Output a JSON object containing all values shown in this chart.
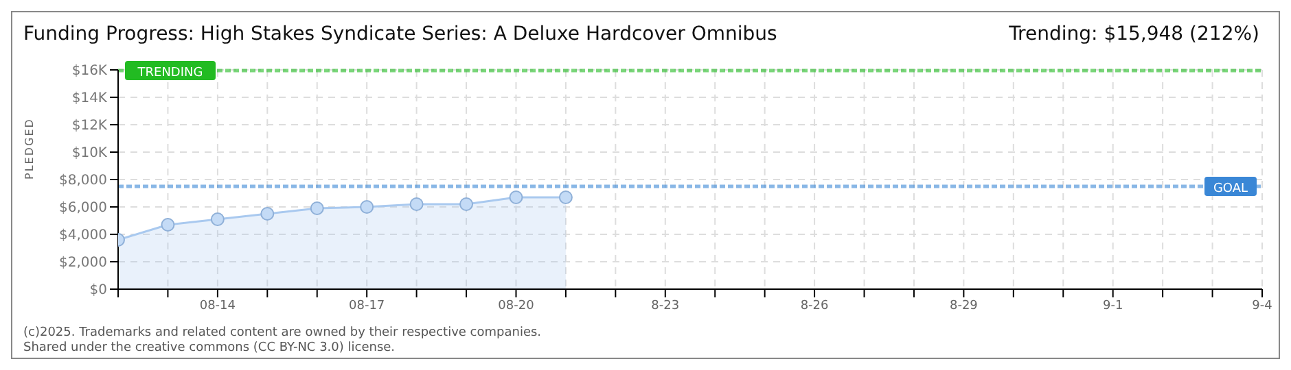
{
  "chart_data": {
    "type": "area",
    "title": "Funding Progress: High Stakes Syndicate Series: A Deluxe Hardcover Omnibus",
    "ylabel": "PLEDGED",
    "annotations": [
      "Trending:  $15,948 (212%)",
      "(c)2025. Trademarks and related content are owned by their respective companies.",
      "Shared under the creative commons (CC BY-NC 3.0) license."
    ],
    "x": [
      "--08-12",
      "--08-13",
      "--08-14",
      "--08-15",
      "--08-16",
      "--08-17",
      "--08-18",
      "--08-19",
      "--08-20",
      "--08-21"
    ],
    "series": [
      {
        "color": "#a9c9ef",
        "values": [
          3600,
          4700,
          5100,
          5500,
          5900,
          6000,
          6200,
          6200,
          6700,
          6700
        ]
      }
    ],
    "xlim": [
      "--08-12",
      "--09-04"
    ],
    "xticks": [
      {
        "value": "--08-12",
        "label": null
      },
      {
        "value": "--08-13",
        "label": null
      },
      {
        "value": "--08-14",
        "label": "08-14"
      },
      {
        "value": "--08-15",
        "label": null
      },
      {
        "value": "--08-16",
        "label": null
      },
      {
        "value": "--08-17",
        "label": "08-17"
      },
      {
        "value": "--08-18",
        "label": null
      },
      {
        "value": "--08-19",
        "label": null
      },
      {
        "value": "--08-20",
        "label": "08-20"
      },
      {
        "value": "--08-21",
        "label": null
      },
      {
        "value": "--08-22",
        "label": null
      },
      {
        "value": "--08-23",
        "label": "8-23"
      },
      {
        "value": "--08-24",
        "label": null
      },
      {
        "value": "--08-25",
        "label": null
      },
      {
        "value": "--08-26",
        "label": "8-26"
      },
      {
        "value": "--08-27",
        "label": null
      },
      {
        "value": "--08-28",
        "label": null
      },
      {
        "value": "--08-29",
        "label": "8-29"
      },
      {
        "value": "--08-30",
        "label": null
      },
      {
        "value": "--08-31",
        "label": null
      },
      {
        "value": "--09-01",
        "label": "9-1"
      },
      {
        "value": "--09-02",
        "label": null
      },
      {
        "value": "--09-03",
        "label": null
      },
      {
        "value": "--09-04",
        "label": "9-4"
      }
    ],
    "ylim": [
      0,
      16000
    ],
    "yticks": [
      {
        "value": 0,
        "label": "$0"
      },
      {
        "value": 2000,
        "label": "$2,000"
      },
      {
        "value": 4000,
        "label": "$4,000"
      },
      {
        "value": 6000,
        "label": "$6,000"
      },
      {
        "value": 8000,
        "label": "$8,000"
      },
      {
        "value": 10000,
        "label": "$10K"
      },
      {
        "value": 12000,
        "label": "$12K"
      },
      {
        "value": 14000,
        "label": "$14K"
      },
      {
        "value": 16000,
        "label": "$16K"
      }
    ],
    "ref_lines": [
      {
        "axis": "y",
        "value": 15948,
        "label": "TRENDING",
        "color": "#22bb22",
        "line_style": "dashed"
      },
      {
        "axis": "y",
        "value": 7500,
        "label": "GOAL",
        "color": "#3a87d6",
        "line_style": "dashed"
      }
    ],
    "grid": true,
    "marker": "circle",
    "line_style": "solid"
  }
}
